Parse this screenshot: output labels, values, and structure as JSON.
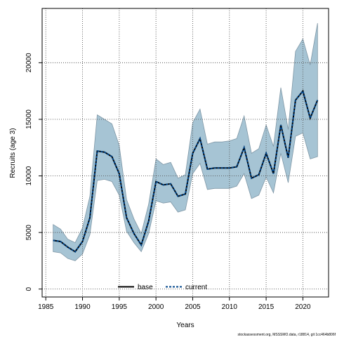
{
  "chart_data": {
    "type": "line",
    "title": "",
    "xlabel": "Years",
    "ylabel": "Recruits (age 3)",
    "xlim": [
      1984.5,
      2023.5
    ],
    "ylim": [
      -700,
      24800
    ],
    "x_ticks": [
      1985,
      1990,
      1995,
      2000,
      2005,
      2010,
      2015,
      2020
    ],
    "y_ticks": [
      0,
      5000,
      10000,
      15000,
      20000
    ],
    "grid": true,
    "legend_position": "bottom-center",
    "x": [
      1986,
      1987,
      1988,
      1989,
      1990,
      1991,
      1992,
      1993,
      1994,
      1995,
      1996,
      1997,
      1998,
      1999,
      2000,
      2001,
      2002,
      2003,
      2004,
      2005,
      2006,
      2007,
      2008,
      2009,
      2010,
      2011,
      2012,
      2013,
      2014,
      2015,
      2016,
      2017,
      2018,
      2019,
      2020,
      2021,
      2022
    ],
    "series": [
      {
        "name": "base",
        "style": "solid",
        "color": "#000000",
        "values": [
          4300,
          4200,
          3700,
          3300,
          4200,
          6300,
          12200,
          12100,
          11700,
          10200,
          6300,
          4900,
          3900,
          6000,
          9500,
          9200,
          9300,
          8200,
          8400,
          12000,
          13300,
          10600,
          10700,
          10700,
          10700,
          10800,
          12500,
          9800,
          10100,
          12000,
          10200,
          14500,
          11600,
          16700,
          17500,
          15100,
          16700
        ]
      },
      {
        "name": "current",
        "style": "dashed",
        "color": "#00468b",
        "values": [
          4300,
          4200,
          3700,
          3300,
          4200,
          6300,
          12200,
          12100,
          11700,
          10200,
          6300,
          4900,
          3900,
          6000,
          9500,
          9200,
          9300,
          8200,
          8400,
          12000,
          13300,
          10600,
          10700,
          10700,
          10700,
          10800,
          12500,
          9800,
          10100,
          12000,
          10200,
          14500,
          11600,
          16700,
          17500,
          15100,
          16700
        ]
      }
    ],
    "band": {
      "color": "#a6c4d4",
      "lower": [
        3300,
        3200,
        2700,
        2500,
        3100,
        4800,
        9600,
        9700,
        9500,
        8300,
        5100,
        4100,
        3300,
        4900,
        7800,
        7600,
        7700,
        6800,
        7000,
        10200,
        11100,
        8800,
        8900,
        8900,
        8900,
        9100,
        10200,
        8000,
        8300,
        9900,
        8500,
        12000,
        9400,
        13500,
        13800,
        11500,
        11700
      ],
      "upper": [
        5700,
        5300,
        4400,
        4100,
        5400,
        8200,
        15400,
        15000,
        14600,
        12700,
        7900,
        6200,
        4900,
        7500,
        11500,
        11000,
        11200,
        9800,
        10100,
        14700,
        15900,
        12800,
        13000,
        13000,
        13100,
        13300,
        15300,
        12000,
        12400,
        14500,
        12600,
        17800,
        14100,
        21000,
        22100,
        19800,
        23500
      ]
    }
  },
  "footer": {
    "text": "stockassessment.org, MSSSMO.data, r18814, git 1cc464b806f"
  }
}
